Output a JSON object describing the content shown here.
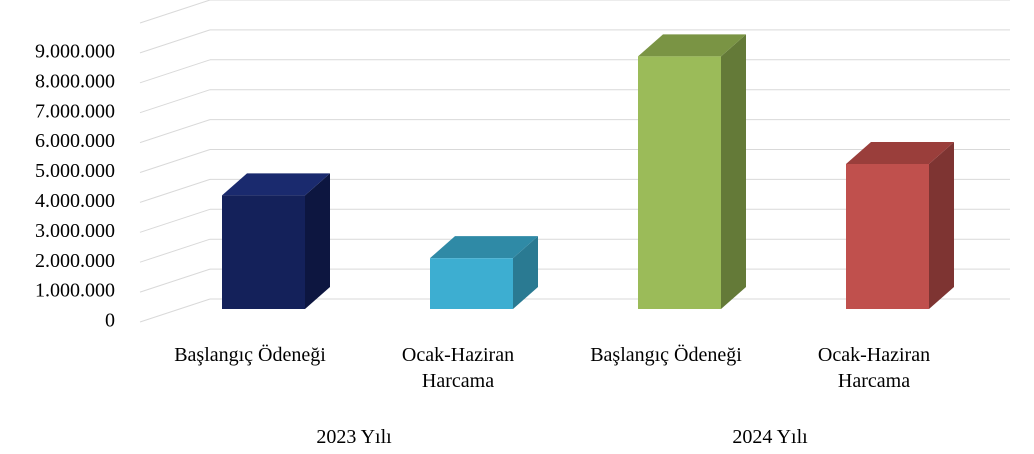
{
  "chart_data": {
    "type": "bar",
    "categories": [
      "Başlangıç Ödeneği",
      "Ocak-Haziran\nHarcama",
      "Başlangıç Ödeneği",
      "Ocak-Haziran\nHarcama"
    ],
    "groups": [
      "2023 Yılı",
      "2024 Yılı"
    ],
    "values": [
      3800000,
      1700000,
      8450000,
      4850000
    ],
    "colors": [
      "#14215a",
      "#3daed1",
      "#9bbb59",
      "#c0504d"
    ],
    "side_colors": [
      "#0d1640",
      "#2a7a92",
      "#647a38",
      "#7e3432"
    ],
    "top_colors": [
      "#1a2a6e",
      "#2f8aa6",
      "#7a9444",
      "#9a3e3b"
    ],
    "ylim": [
      0,
      10000000
    ],
    "yticks": [
      {
        "value": 0,
        "label": "0"
      },
      {
        "value": 1000000,
        "label": "1.000.000"
      },
      {
        "value": 2000000,
        "label": "2.000.000"
      },
      {
        "value": 3000000,
        "label": "3.000.000"
      },
      {
        "value": 4000000,
        "label": "4.000.000"
      },
      {
        "value": 5000000,
        "label": "5.000.000"
      },
      {
        "value": 6000000,
        "label": "6.000.000"
      },
      {
        "value": 7000000,
        "label": "7.000.000"
      },
      {
        "value": 8000000,
        "label": "8.000.000"
      },
      {
        "value": 9000000,
        "label": "9.000.000"
      }
    ],
    "grid": true
  }
}
